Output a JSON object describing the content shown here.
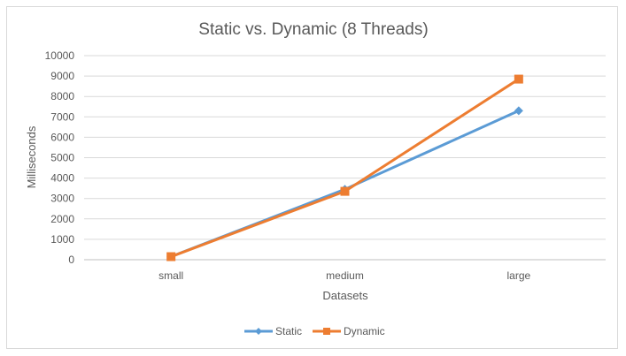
{
  "chart_data": {
    "type": "line",
    "title": "Static vs. Dynamic (8 Threads)",
    "xlabel": "Datasets",
    "ylabel": "Milliseconds",
    "categories": [
      "small",
      "medium",
      "large"
    ],
    "ylim": [
      0,
      10000
    ],
    "yticks": [
      0,
      1000,
      2000,
      3000,
      4000,
      5000,
      6000,
      7000,
      8000,
      9000,
      10000
    ],
    "grid": true,
    "legend_position": "bottom",
    "series": [
      {
        "name": "Static",
        "values": [
          150,
          3450,
          7300
        ],
        "color": "#5b9bd5",
        "marker": "diamond"
      },
      {
        "name": "Dynamic",
        "values": [
          150,
          3350,
          8850
        ],
        "color": "#ed7d31",
        "marker": "square"
      }
    ]
  }
}
